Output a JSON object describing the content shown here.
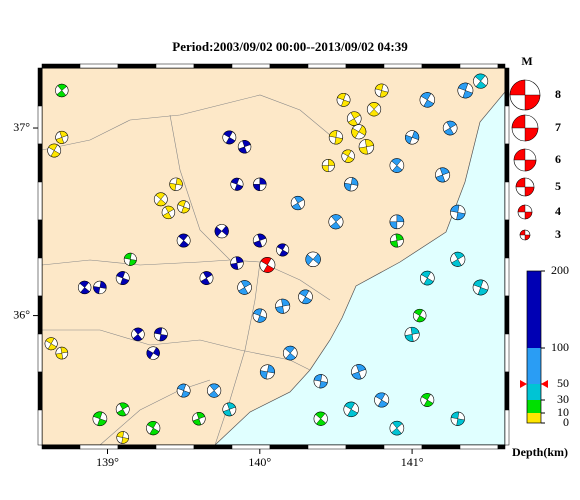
{
  "title": "Period:2003/09/02 00:00--2013/09/02 04:39",
  "map": {
    "lon_range": [
      138.57,
      141.61
    ],
    "lat_range": [
      35.31,
      37.32
    ],
    "lon_ticks": [
      {
        "value": 139,
        "label": "139°"
      },
      {
        "value": 140,
        "label": "140°"
      },
      {
        "value": 141,
        "label": "141°"
      }
    ],
    "lat_ticks": [
      {
        "value": 36,
        "label": "36°"
      },
      {
        "value": 37,
        "label": "37°"
      }
    ],
    "land_color": "#fde8c8",
    "sea_color": "#e0ffff"
  },
  "magnitude_legend": {
    "title": "M",
    "values": [
      8,
      7,
      6,
      5,
      4,
      3
    ],
    "color": "#ff0000"
  },
  "depth_scale": {
    "label": "Depth(km)",
    "ticks": [
      0,
      10,
      30,
      50,
      100,
      200
    ],
    "colors": [
      "#ffe600",
      "#00e000",
      "#00c4d4",
      "#2a9df4",
      "#0000b4"
    ]
  },
  "highlight": {
    "lon": 140.05,
    "lat": 36.27,
    "depth": 50,
    "mag": 4.3,
    "strike": 30,
    "color": "#ff0000"
  },
  "events": [
    [
      140.55,
      37.15,
      5,
      3.8,
      20
    ],
    [
      140.62,
      37.05,
      5,
      4.0,
      60
    ],
    [
      140.5,
      36.95,
      5,
      3.9,
      10
    ],
    [
      140.7,
      36.9,
      5,
      4.2,
      80
    ],
    [
      140.58,
      36.85,
      5,
      3.7,
      30
    ],
    [
      140.65,
      36.98,
      5,
      4.1,
      120
    ],
    [
      140.75,
      37.1,
      5,
      3.9,
      45
    ],
    [
      140.45,
      36.8,
      5,
      3.6,
      90
    ],
    [
      140.8,
      37.2,
      5,
      3.8,
      15
    ],
    [
      138.65,
      36.88,
      5,
      3.8,
      30
    ],
    [
      138.7,
      36.95,
      5,
      3.6,
      70
    ],
    [
      139.35,
      36.62,
      5,
      3.8,
      40
    ],
    [
      139.45,
      36.7,
      5,
      3.7,
      100
    ],
    [
      139.5,
      36.58,
      5,
      3.6,
      20
    ],
    [
      139.4,
      36.55,
      5,
      3.7,
      60
    ],
    [
      138.63,
      35.85,
      5,
      3.6,
      30
    ],
    [
      138.7,
      35.8,
      5,
      3.5,
      80
    ],
    [
      139.1,
      35.35,
      5,
      3.5,
      10
    ],
    [
      139.8,
      36.95,
      150,
      3.8,
      30
    ],
    [
      139.9,
      36.9,
      150,
      3.7,
      70
    ],
    [
      139.85,
      36.7,
      150,
      3.6,
      20
    ],
    [
      140.0,
      36.7,
      150,
      3.7,
      90
    ],
    [
      139.5,
      36.4,
      150,
      3.8,
      40
    ],
    [
      139.75,
      36.45,
      150,
      3.9,
      130
    ],
    [
      139.65,
      36.2,
      150,
      3.8,
      60
    ],
    [
      139.1,
      36.2,
      150,
      3.8,
      20
    ],
    [
      138.95,
      36.15,
      150,
      3.7,
      100
    ],
    [
      139.2,
      35.9,
      150,
      3.7,
      50
    ],
    [
      139.35,
      35.9,
      150,
      3.8,
      10
    ],
    [
      139.3,
      35.8,
      150,
      3.7,
      120
    ],
    [
      140.0,
      36.4,
      150,
      3.8,
      70
    ],
    [
      140.15,
      36.35,
      150,
      3.6,
      30
    ],
    [
      139.85,
      36.28,
      150,
      3.7,
      80
    ],
    [
      138.85,
      36.15,
      150,
      3.7,
      40
    ],
    [
      141.1,
      37.15,
      70,
      4.2,
      30
    ],
    [
      141.25,
      37.0,
      70,
      4.0,
      60
    ],
    [
      141.35,
      37.2,
      70,
      4.3,
      20
    ],
    [
      141.0,
      36.95,
      70,
      3.9,
      110
    ],
    [
      140.9,
      36.8,
      70,
      4.0,
      40
    ],
    [
      141.2,
      36.75,
      70,
      4.1,
      70
    ],
    [
      141.3,
      36.55,
      70,
      4.2,
      10
    ],
    [
      140.9,
      36.5,
      70,
      4.0,
      90
    ],
    [
      140.5,
      36.5,
      70,
      4.1,
      50
    ],
    [
      140.35,
      36.3,
      70,
      4.2,
      130
    ],
    [
      140.3,
      36.1,
      70,
      4.0,
      30
    ],
    [
      140.15,
      36.05,
      70,
      4.1,
      80
    ],
    [
      140.0,
      36.0,
      70,
      3.9,
      20
    ],
    [
      139.9,
      36.15,
      70,
      4.0,
      60
    ],
    [
      140.2,
      35.8,
      70,
      4.0,
      40
    ],
    [
      140.05,
      35.7,
      70,
      4.1,
      100
    ],
    [
      140.4,
      35.65,
      70,
      3.9,
      10
    ],
    [
      140.65,
      35.7,
      70,
      4.2,
      70
    ],
    [
      140.8,
      35.55,
      70,
      4.1,
      30
    ],
    [
      139.7,
      35.6,
      70,
      3.9,
      50
    ],
    [
      139.5,
      35.6,
      70,
      3.8,
      20
    ],
    [
      140.6,
      36.7,
      70,
      3.9,
      100
    ],
    [
      140.25,
      36.6,
      70,
      3.9,
      60
    ],
    [
      141.45,
      36.15,
      40,
      4.3,
      20
    ],
    [
      141.3,
      36.3,
      40,
      4.1,
      60
    ],
    [
      141.1,
      36.2,
      40,
      4.0,
      30
    ],
    [
      141.0,
      35.9,
      40,
      4.1,
      80
    ],
    [
      140.6,
      35.5,
      40,
      4.2,
      30
    ],
    [
      140.9,
      35.4,
      40,
      4.0,
      50
    ],
    [
      141.3,
      35.45,
      40,
      3.9,
      10
    ],
    [
      139.8,
      35.5,
      40,
      3.8,
      70
    ],
    [
      141.45,
      37.25,
      40,
      4.1,
      40
    ],
    [
      138.95,
      35.45,
      20,
      4.0,
      20
    ],
    [
      139.1,
      35.5,
      20,
      3.8,
      60
    ],
    [
      139.3,
      35.4,
      20,
      3.9,
      30
    ],
    [
      138.7,
      37.2,
      20,
      3.7,
      50
    ],
    [
      139.15,
      36.3,
      20,
      3.6,
      10
    ],
    [
      140.9,
      36.4,
      20,
      3.8,
      80
    ],
    [
      141.05,
      36.0,
      20,
      3.7,
      30
    ],
    [
      140.4,
      35.45,
      20,
      3.9,
      40
    ],
    [
      139.6,
      35.45,
      20,
      3.7,
      70
    ],
    [
      141.1,
      35.55,
      20,
      3.8,
      30
    ]
  ]
}
